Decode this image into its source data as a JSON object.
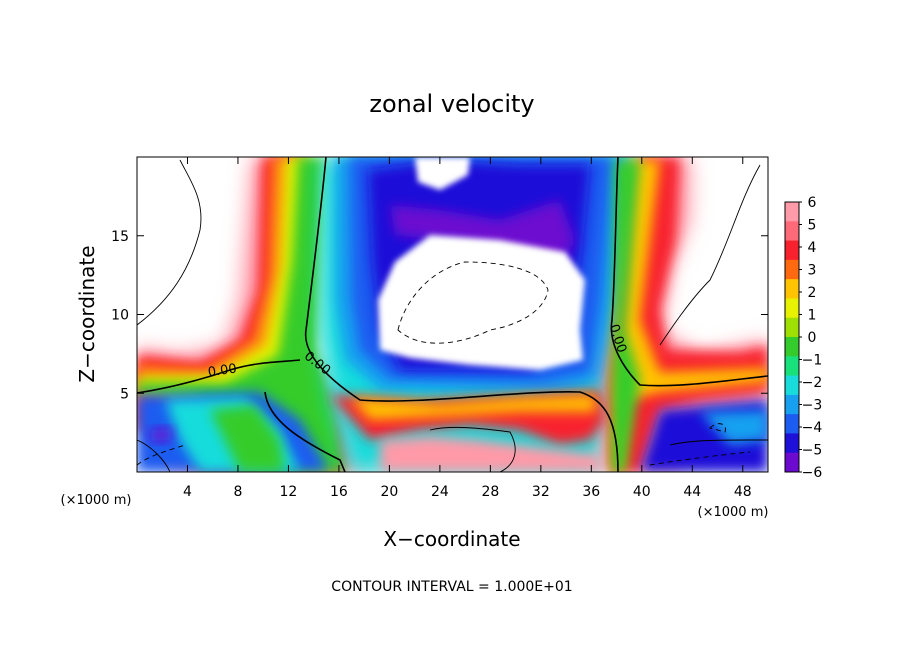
{
  "chart_data": {
    "type": "heatmap",
    "title": "zonal velocity",
    "xlabel": "X−coordinate",
    "ylabel": "Z−coordinate",
    "x_unit": "(×1000 m)",
    "y_unit": "(×1000 m)",
    "xlim": [
      0,
      50
    ],
    "ylim": [
      0,
      20
    ],
    "x_ticks": [
      4,
      8,
      12,
      16,
      20,
      24,
      28,
      32,
      36,
      40,
      44,
      48
    ],
    "y_ticks": [
      5,
      10,
      15
    ],
    "x_tick_labels": [
      "4",
      "8",
      "12",
      "16",
      "20",
      "24",
      "28",
      "32",
      "36",
      "40",
      "44",
      "48"
    ],
    "y_tick_labels": [
      "5",
      "10",
      "15"
    ],
    "colorbar": {
      "levels": [
        6,
        5,
        4,
        3,
        2,
        1,
        0,
        -1,
        -2,
        -3,
        -4,
        -5,
        -6
      ],
      "labels": [
        "6",
        "5",
        "4",
        "3",
        "2",
        "1",
        "0",
        "−1",
        "−2",
        "−3",
        "−4",
        "−5",
        "−6"
      ],
      "colors": [
        "#ff9aa8",
        "#ff6a78",
        "#f8222e",
        "#ff6a10",
        "#ffc400",
        "#e6f200",
        "#a0e000",
        "#34cc2c",
        "#18e07a",
        "#18dcdc",
        "#18a0f0",
        "#1c5cf0",
        "#1e10d8",
        "#6c0ad0"
      ]
    },
    "contour_label": "0.00",
    "contour_labels": [
      {
        "text": "0.00",
        "x": 6.8,
        "z": 6.2,
        "angle": -8
      },
      {
        "text": "0.00",
        "x": 14.1,
        "z": 6.7,
        "angle": 38
      },
      {
        "text": "0.00",
        "x": 37.8,
        "z": 8.4,
        "angle": 72
      }
    ],
    "footer": "CONTOUR INTERVAL = 1.000E+01",
    "grid": false,
    "legend": "colorbar-right"
  },
  "colors": {
    "positive_band": "#ff2230",
    "zero_band": "#2ad62a",
    "negative_band": "#1e3ce8",
    "strong_negative": "#6c0ad0",
    "contour": "#000000",
    "frame": "#000000"
  }
}
